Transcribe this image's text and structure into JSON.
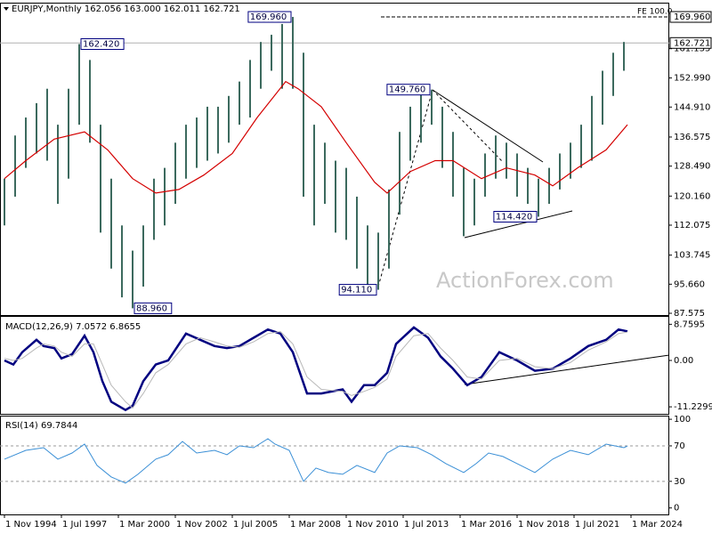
{
  "chart_data": [
    {
      "type": "hilo",
      "title": "EURJPY,Monthly  162.056 163.000 162.011 162.721",
      "watermark": "ActionForex.com",
      "color": "#3c6a5e",
      "xlim": [
        -2.5,
        373.5
      ],
      "xticks": [
        {
          "value": 0,
          "label": "1 Nov 1994"
        },
        {
          "value": 32,
          "label": "1 Jul 1997"
        },
        {
          "value": 64,
          "label": "1 Mar 2000"
        },
        {
          "value": 96,
          "label": "1 Nov 2002"
        },
        {
          "value": 128,
          "label": "1 Jul 2005"
        },
        {
          "value": 160,
          "label": "1 Mar 2008"
        },
        {
          "value": 192,
          "label": "1 Nov 2010"
        },
        {
          "value": 224,
          "label": "1 Jul 2013"
        },
        {
          "value": 256,
          "label": "1 Mar 2016"
        },
        {
          "value": 288,
          "label": "1 Nov 2018"
        },
        {
          "value": 320,
          "label": "1 Jul 2021"
        },
        {
          "value": 352,
          "label": "1 Mar 2024"
        }
      ],
      "ylim": [
        87.08,
        173.68
      ],
      "yticks": [
        {
          "value": 87.575,
          "label": "87.575"
        },
        {
          "value": 95.66,
          "label": "95.660"
        },
        {
          "value": 103.745,
          "label": "103.745"
        },
        {
          "value": 112.075,
          "label": "112.075"
        },
        {
          "value": 120.16,
          "label": "120.160"
        },
        {
          "value": 128.49,
          "label": "128.490"
        },
        {
          "value": 136.575,
          "label": "136.575"
        },
        {
          "value": 144.91,
          "label": "144.910"
        },
        {
          "value": 152.99,
          "label": "152.990"
        },
        {
          "value": 161.135,
          "label": "161.135"
        }
      ],
      "x": [
        0,
        6,
        12,
        18,
        24,
        30,
        36,
        42,
        48,
        54,
        60,
        66,
        72,
        78,
        84,
        90,
        96,
        102,
        108,
        114,
        120,
        126,
        132,
        138,
        144,
        150,
        156,
        162,
        168,
        174,
        180,
        186,
        192,
        198,
        204,
        210,
        216,
        222,
        228,
        234,
        240,
        246,
        252,
        258,
        264,
        270,
        276,
        282,
        288,
        294,
        300,
        306,
        312,
        318,
        324,
        330,
        336,
        342,
        348
      ],
      "low": [
        112,
        120,
        128,
        132,
        130,
        118,
        125,
        140,
        135,
        110,
        100,
        92,
        88.96,
        95,
        108,
        112,
        118,
        125,
        128,
        130,
        132,
        135,
        140,
        142,
        150,
        155,
        150,
        150,
        120,
        112,
        118,
        110,
        108,
        100,
        95,
        94.11,
        100,
        115,
        130,
        135,
        140,
        128,
        120,
        109,
        112,
        120,
        125,
        125,
        120,
        118,
        114.42,
        118,
        122,
        125,
        128,
        130,
        140,
        148,
        155
      ],
      "high": [
        125,
        137,
        142,
        146,
        150,
        140,
        150,
        162.42,
        158,
        140,
        125,
        112,
        105,
        112,
        125,
        128,
        135,
        140,
        142,
        145,
        145,
        148,
        152,
        158,
        163,
        165,
        168,
        169.96,
        160,
        140,
        135,
        130,
        128,
        120,
        112,
        110,
        122,
        138,
        145,
        149,
        149.76,
        145,
        138,
        128,
        125,
        132,
        137,
        135,
        132,
        128,
        125,
        128,
        132,
        135,
        140,
        148,
        155,
        160,
        163
      ],
      "ma": {
        "color": "#d40000",
        "x": [
          0,
          12,
          28,
          45,
          58,
          72,
          85,
          98,
          112,
          128,
          142,
          158,
          165,
          178,
          192,
          208,
          215,
          228,
          242,
          252,
          268,
          282,
          298,
          308,
          322,
          338,
          350
        ],
        "values": [
          125,
          130,
          136,
          138,
          133,
          125,
          121,
          122,
          126,
          132,
          142,
          152,
          150,
          145,
          135,
          124,
          121,
          127,
          130,
          130,
          125,
          128,
          126,
          123,
          128,
          133,
          140
        ]
      },
      "annotations": [
        {
          "label": "162.420",
          "value": 162.42,
          "x": 42
        },
        {
          "label": "169.960",
          "value": 169.96,
          "x": 162
        },
        {
          "label": "88.960",
          "value": 88.96,
          "x": 72
        },
        {
          "label": "94.110",
          "value": 94.11,
          "x": 210
        },
        {
          "label": "149.760",
          "value": 149.76,
          "x": 240
        },
        {
          "label": "114.420",
          "value": 114.42,
          "x": 300
        }
      ],
      "last_price": {
        "value": 162.721,
        "label": "162.721"
      },
      "fe_level": {
        "value": 169.96,
        "label": "169.960",
        "name": "FE 100.0"
      }
    },
    {
      "type": "line",
      "title": "MACD(12,26,9) 7.0572 6.8655",
      "xlim": [
        -2.5,
        373.5
      ],
      "ylim": [
        -12.93,
        10.56
      ],
      "yticks": [
        {
          "value": 8.7595,
          "label": "8.7595"
        },
        {
          "value": 0,
          "label": "0.00"
        },
        {
          "value": -11.2299,
          "label": "-11.2299"
        }
      ],
      "x": [
        0,
        5,
        10,
        18,
        22,
        28,
        32,
        38,
        45,
        50,
        55,
        60,
        68,
        72,
        78,
        85,
        92,
        102,
        110,
        118,
        125,
        132,
        140,
        148,
        155,
        162,
        170,
        178,
        190,
        195,
        202,
        208,
        215,
        220,
        230,
        238,
        245,
        252,
        260,
        268,
        278,
        288,
        298,
        308,
        318,
        328,
        338,
        345,
        350
      ],
      "series": [
        {
          "color": "#000080",
          "width": 2.5,
          "values": [
            0,
            -1,
            2,
            5,
            3.5,
            3,
            0.5,
            1.5,
            6,
            2,
            -5,
            -10,
            -12,
            -11,
            -5,
            -1,
            0,
            6.5,
            5,
            3.5,
            3,
            3.5,
            5.5,
            7.5,
            6.5,
            2,
            -8,
            -8,
            -7,
            -10,
            -6,
            -6,
            -3,
            4,
            8,
            5.5,
            1,
            -2,
            -6,
            -4,
            2,
            0,
            -2.5,
            -2,
            0.5,
            3.5,
            5,
            7.5,
            7.0572
          ]
        },
        {
          "color": "#b8b8b8",
          "width": 1,
          "values": [
            0.5,
            0,
            0.5,
            3,
            4,
            3.5,
            2,
            1,
            4,
            4,
            -1,
            -6,
            -10,
            -11.5,
            -8,
            -3,
            -1,
            4,
            5.5,
            4.5,
            3.5,
            3.2,
            4.5,
            6.5,
            7,
            4,
            -4,
            -7,
            -7.5,
            -8.5,
            -7.5,
            -6.5,
            -4.5,
            1,
            6,
            6.5,
            3,
            0,
            -4,
            -4.5,
            0,
            0.5,
            -1.5,
            -2,
            -0.5,
            2.5,
            4.5,
            6.5,
            6.8655
          ]
        }
      ]
    },
    {
      "type": "line",
      "title": "RSI(14) 69.7844",
      "xlim": [
        -2.5,
        373.5
      ],
      "ylim": [
        -7.3,
        103.1
      ],
      "yticks": [
        100,
        70,
        30,
        0
      ],
      "levels": [
        70,
        30
      ],
      "x": [
        0,
        12,
        22,
        30,
        38,
        45,
        52,
        60,
        68,
        75,
        85,
        92,
        100,
        108,
        118,
        125,
        132,
        140,
        148,
        152,
        160,
        168,
        175,
        182,
        190,
        198,
        208,
        215,
        222,
        232,
        240,
        248,
        258,
        265,
        272,
        280,
        288,
        298,
        308,
        318,
        328,
        338,
        348,
        350
      ],
      "series": [
        {
          "color": "#3a8fd6",
          "width": 1,
          "values": [
            55,
            65,
            68,
            55,
            62,
            72,
            48,
            35,
            28,
            38,
            55,
            60,
            75,
            62,
            65,
            60,
            70,
            68,
            78,
            72,
            65,
            30,
            45,
            40,
            38,
            48,
            40,
            62,
            70,
            68,
            60,
            50,
            40,
            50,
            62,
            58,
            50,
            40,
            55,
            65,
            60,
            72,
            68,
            69.7844
          ]
        }
      ]
    }
  ]
}
